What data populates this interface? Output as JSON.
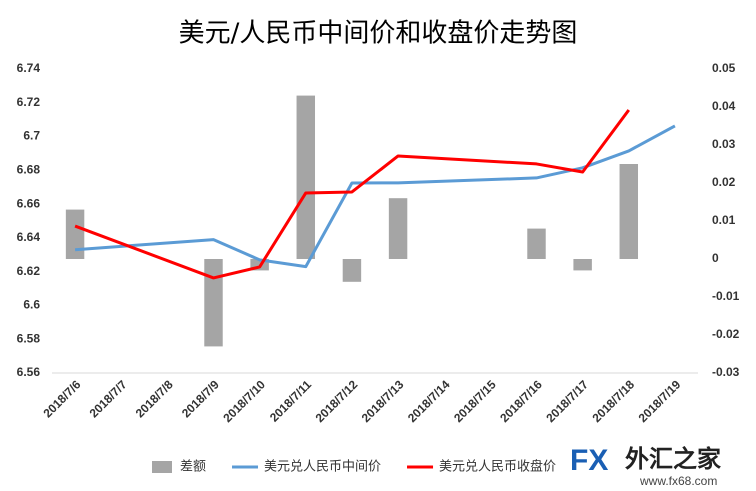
{
  "chart_data": {
    "type": "combo",
    "title": "美元/人民币中间价和收盘价走势图",
    "categories": [
      "2018/7/6",
      "2018/7/7",
      "2018/7/8",
      "2018/7/9",
      "2018/7/10",
      "2018/7/11",
      "2018/7/12",
      "2018/7/13",
      "2018/7/14",
      "2018/7/15",
      "2018/7/16",
      "2018/7/17",
      "2018/7/18",
      "2018/7/19"
    ],
    "ylim": [
      6.56,
      6.74
    ],
    "yticks": [
      6.56,
      6.58,
      6.6,
      6.62,
      6.64,
      6.66,
      6.68,
      6.7,
      6.72,
      6.74
    ],
    "y2lim": [
      -0.03,
      0.05
    ],
    "y2ticks": [
      -0.03,
      -0.02,
      -0.01,
      0,
      0.01,
      0.02,
      0.03,
      0.04,
      0.05
    ],
    "connect_nulls": true,
    "legend": "bottom",
    "series": [
      {
        "name": "差额",
        "type": "bar",
        "axis": "y2",
        "color": "#a5a5a5",
        "values": [
          0.013,
          null,
          null,
          -0.023,
          -0.003,
          0.043,
          -0.006,
          0.016,
          null,
          null,
          0.008,
          -0.003,
          0.025,
          null
        ]
      },
      {
        "name": "美元兑人民币中间价",
        "type": "line",
        "color": "#5b9bd5",
        "values": [
          6.633,
          null,
          null,
          6.639,
          6.627,
          6.623,
          6.6725,
          6.6726,
          null,
          null,
          6.6755,
          6.6815,
          6.6915,
          6.7063
        ]
      },
      {
        "name": "美元兑人民币收盘价",
        "type": "line",
        "color": "#ff0000",
        "values": [
          6.647,
          null,
          null,
          6.6163,
          6.6228,
          6.6666,
          6.6672,
          6.6885,
          null,
          null,
          6.6838,
          6.679,
          6.7157,
          null
        ]
      }
    ]
  },
  "logo": {
    "brand": "FX",
    "name": "外汇之家",
    "url": "www.fx68.com"
  }
}
